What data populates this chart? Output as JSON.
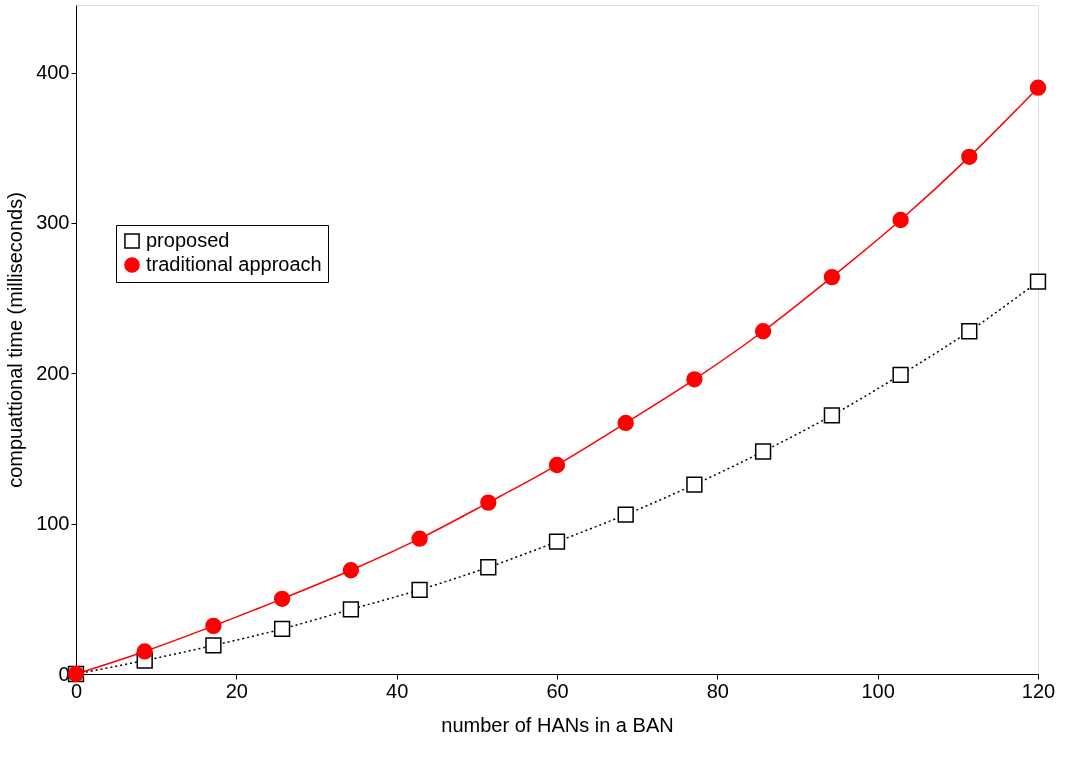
{
  "chart_data": {
    "type": "line",
    "xlabel": "number of HANs in a BAN",
    "ylabel": "compuattional time (milliseconds)",
    "x": [
      0,
      8.57,
      17.14,
      25.71,
      34.29,
      42.86,
      51.43,
      60,
      68.57,
      77.14,
      85.71,
      94.29,
      102.86,
      111.43,
      120
    ],
    "series": [
      {
        "name": "proposed",
        "color": "#000000",
        "marker": "square",
        "line_style": "dotted",
        "values": [
          0,
          9,
          19,
          30,
          43,
          56,
          71,
          88,
          106,
          126,
          148,
          172,
          199,
          228,
          261
        ]
      },
      {
        "name": "traditional approach",
        "color": "#ff0000",
        "marker": "circle",
        "line_style": "solid",
        "values": [
          0,
          15,
          32,
          50,
          69,
          90,
          114,
          139,
          167,
          196,
          228,
          264,
          302,
          344,
          390
        ]
      }
    ],
    "xlim": [
      0,
      120
    ],
    "xticks": [
      0,
      20,
      40,
      60,
      80,
      100,
      120
    ],
    "ylim": [
      0,
      445
    ],
    "yticks": [
      0,
      100,
      200,
      300,
      400
    ],
    "grid": false,
    "legend": "left"
  }
}
